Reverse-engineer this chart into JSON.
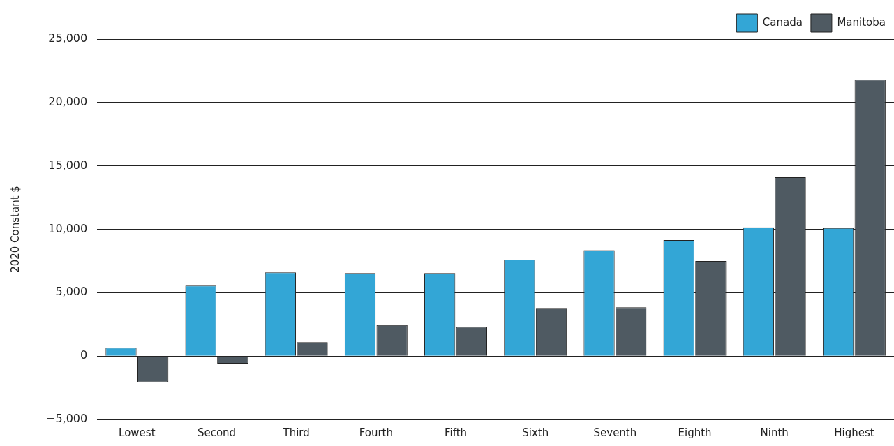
{
  "chart_data": {
    "type": "bar",
    "ylabel": "2020 Constant $",
    "categories": [
      "Lowest",
      "Second",
      "Third",
      "Fourth",
      "Fifth",
      "Sixth",
      "Seventh",
      "Eighth",
      "Ninth",
      "Highest"
    ],
    "series": [
      {
        "name": "Canada",
        "color": "#33a6d6",
        "values": [
          650,
          5550,
          6600,
          6550,
          6550,
          7600,
          8350,
          9150,
          10150,
          10100
        ]
      },
      {
        "name": "Manitoba",
        "color": "#4f5a62",
        "values": [
          -2050,
          -600,
          1100,
          2450,
          2300,
          3800,
          3850,
          7500,
          14100,
          21800
        ]
      }
    ],
    "ylim": [
      -5000,
      25000
    ],
    "yticks": [
      {
        "value": -5000,
        "label": "−5,000"
      },
      {
        "value": 0,
        "label": "0"
      },
      {
        "value": 5000,
        "label": "5,000"
      },
      {
        "value": 10000,
        "label": "10,000"
      },
      {
        "value": 15000,
        "label": "15,000"
      },
      {
        "value": 20000,
        "label": "20,000"
      },
      {
        "value": 25000,
        "label": "25,000"
      }
    ],
    "grid": "y",
    "legend": "top right"
  }
}
